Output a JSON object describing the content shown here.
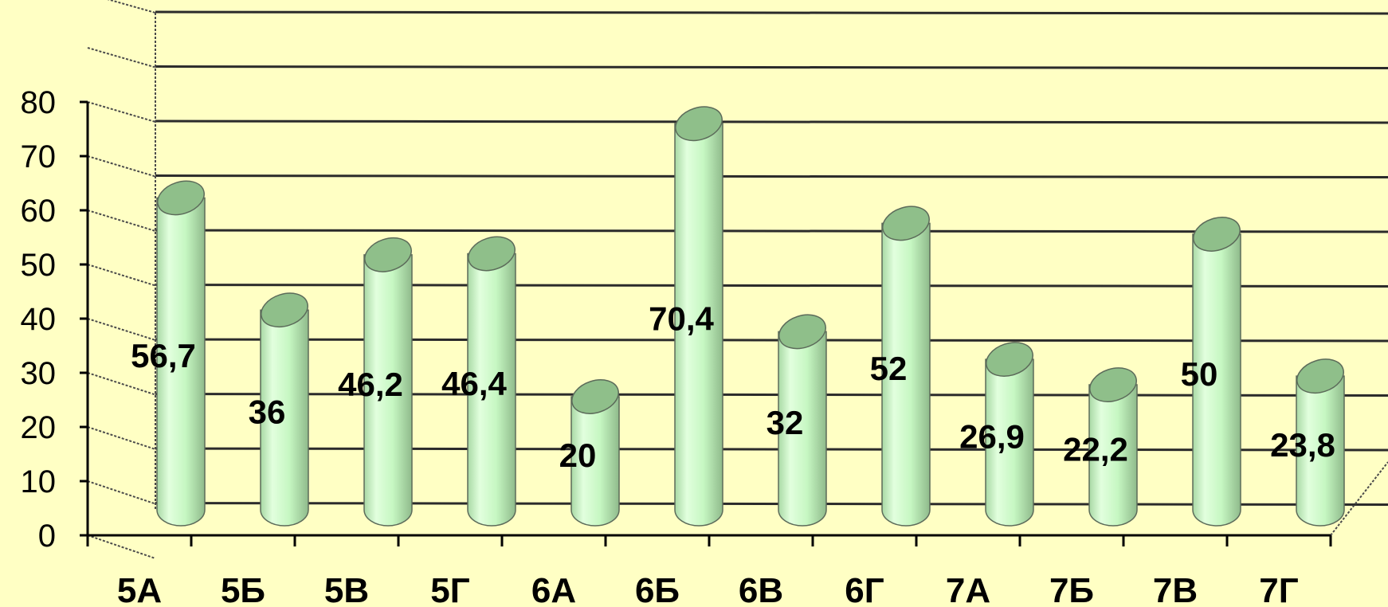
{
  "chart_data": {
    "type": "bar",
    "style": "3d-cylinder",
    "categories": [
      "5А",
      "5Б",
      "5В",
      "5Г",
      "6А",
      "6Б",
      "6В",
      "6Г",
      "7А",
      "7Б",
      "7В",
      "7Г"
    ],
    "values": [
      56.7,
      36,
      46.2,
      46.4,
      20,
      70.4,
      32,
      52,
      26.9,
      22.2,
      50,
      23.8
    ],
    "data_labels": [
      "56,7",
      "36",
      "46,2",
      "46,4",
      "20",
      "70,4",
      "32",
      "52",
      "26,9",
      "22,2",
      "50",
      "23,8"
    ],
    "yticks": [
      "0",
      "10",
      "20",
      "30",
      "40",
      "50",
      "60",
      "70",
      "80"
    ],
    "ylim": [
      0,
      80
    ],
    "grid": true,
    "legend": "none",
    "colors": {
      "background": "#ffffc4",
      "bar_body": "#c6f7c2",
      "bar_top": "#8fbf8a",
      "bar_outline": "#5c6b5a"
    }
  }
}
